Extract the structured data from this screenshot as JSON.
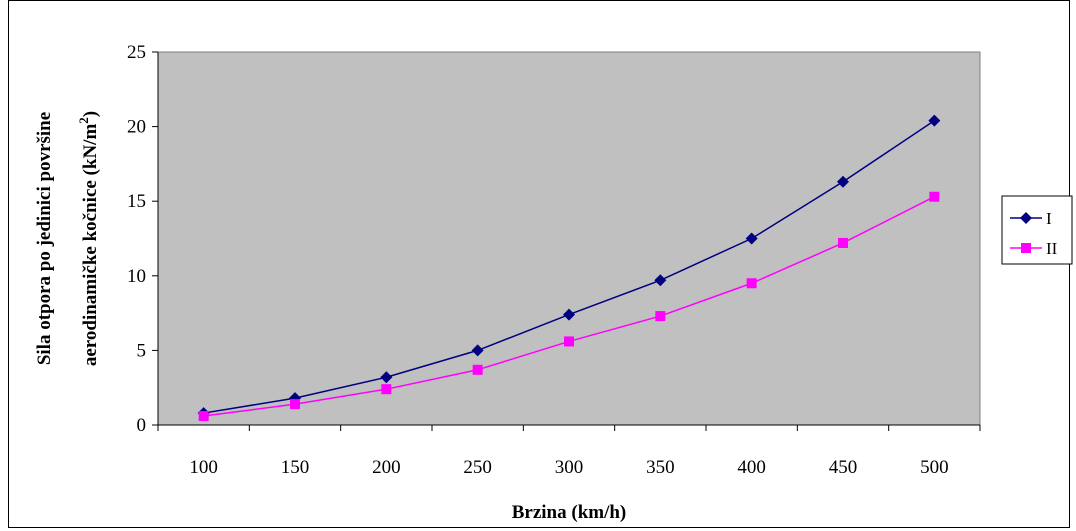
{
  "chart_data": {
    "type": "line",
    "categories": [
      "100",
      "150",
      "200",
      "250",
      "300",
      "350",
      "400",
      "450",
      "500"
    ],
    "series": [
      {
        "name": "I",
        "color": "#000080",
        "marker": "diamond",
        "values": [
          0.8,
          1.8,
          3.2,
          5.0,
          7.4,
          9.7,
          12.5,
          16.3,
          20.4
        ]
      },
      {
        "name": "II",
        "color": "#ff00ff",
        "marker": "square",
        "values": [
          0.6,
          1.4,
          2.4,
          3.7,
          5.6,
          7.3,
          9.5,
          12.2,
          15.3
        ]
      }
    ],
    "xlabel": "Brzina  (km/h)",
    "ylabel_line1": "Sila otpora po jedinici površine",
    "ylabel_line2_main": "aerodinamičke kočnice (kN/m",
    "ylabel_sup": "2",
    "ylabel_close": ")",
    "ylim": [
      0,
      25
    ],
    "yticks": [
      0,
      5,
      10,
      15,
      20,
      25
    ],
    "grid": false,
    "plot_background": "#c0c0c0",
    "legend_position": "right"
  }
}
